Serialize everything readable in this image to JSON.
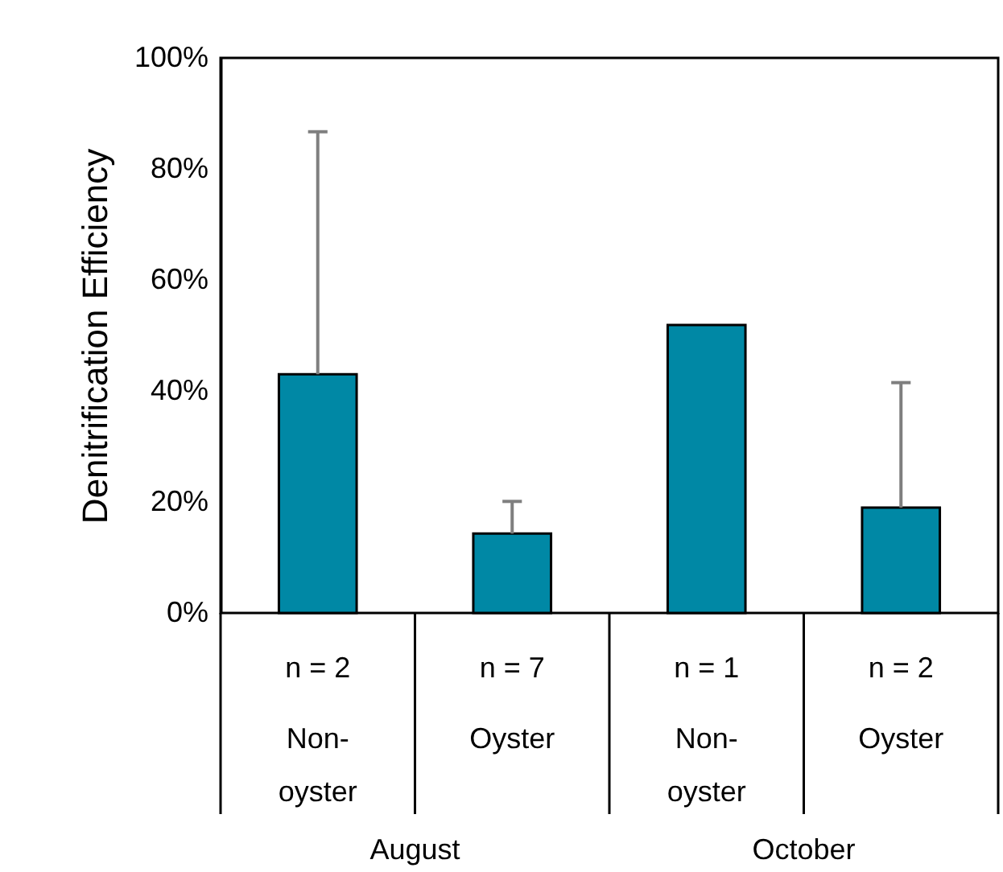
{
  "chart_data": {
    "type": "bar",
    "ylabel": "Denitrification Efficiency",
    "categories": [
      "Non-oyster",
      "Oyster",
      "Non-oyster",
      "Oyster"
    ],
    "values": [
      43,
      14.3,
      51.9,
      19
    ],
    "errors": [
      [
        43,
        86.7
      ],
      [
        14.3,
        20.1
      ],
      null,
      [
        19,
        41.5
      ]
    ],
    "color": "#0088a5",
    "ylim": [
      0,
      100
    ],
    "yticks": [
      {
        "value": 0,
        "label": "0%"
      },
      {
        "value": 20,
        "label": "20%"
      },
      {
        "value": 40,
        "label": "40%"
      },
      {
        "value": 60,
        "label": "60%"
      },
      {
        "value": 80,
        "label": "80%"
      },
      {
        "value": 100,
        "label": "100%"
      }
    ],
    "grid": false,
    "annotations": [
      "n = 2",
      "n = 7",
      "n = 1",
      "n = 2",
      "August",
      "October"
    ]
  }
}
